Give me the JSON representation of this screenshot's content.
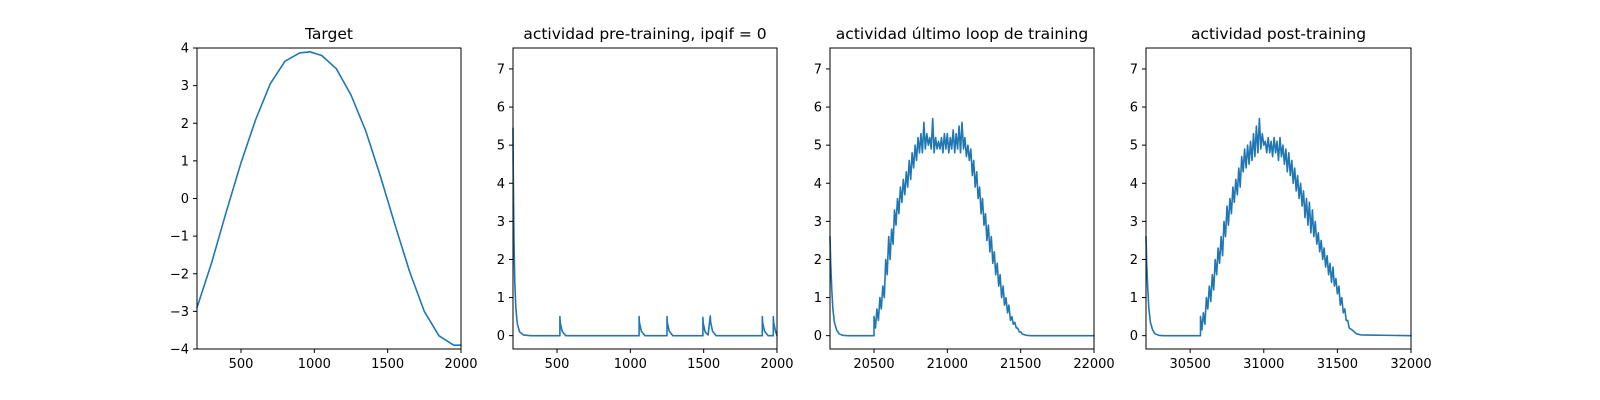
{
  "figure": {
    "line_color": "#1f77b4"
  },
  "chart_data": [
    {
      "type": "line",
      "title": "Target",
      "xlim": [
        200,
        2000
      ],
      "ylim": [
        -4,
        4
      ],
      "xticks": [
        500,
        1000,
        1500,
        2000
      ],
      "yticks": [
        -4,
        -3,
        -2,
        -1,
        0,
        1,
        2,
        3,
        4
      ],
      "series": [
        {
          "x": [
            200,
            300,
            400,
            500,
            600,
            700,
            800,
            900,
            970,
            1050,
            1150,
            1250,
            1350,
            1450,
            1550,
            1650,
            1750,
            1850,
            1950,
            2000
          ],
          "y": [
            -2.9,
            -1.7,
            -0.35,
            0.95,
            2.1,
            3.05,
            3.65,
            3.87,
            3.9,
            3.8,
            3.45,
            2.75,
            1.8,
            0.6,
            -0.7,
            -1.95,
            -3.0,
            -3.65,
            -3.9,
            -3.9
          ]
        }
      ]
    },
    {
      "type": "line",
      "title": "actividad pre-training, ipqif = 0",
      "xlim": [
        200,
        2000
      ],
      "ylim": [
        -0.35,
        7.55
      ],
      "xticks": [
        500,
        1000,
        1500,
        2000
      ],
      "yticks": [
        0,
        1,
        2,
        3,
        4,
        5,
        6,
        7
      ],
      "series": [
        {
          "x": [
            200,
            202,
            207,
            212,
            220,
            230,
            245,
            270,
            320,
            520,
            520,
            522,
            535,
            560,
            1060,
            1060,
            1062,
            1075,
            1100,
            1250,
            1250,
            1252,
            1265,
            1290,
            1495,
            1495,
            1497,
            1510,
            1530,
            1545,
            1547,
            1560,
            1585,
            1900,
            1900,
            1902,
            1915,
            1940,
            1975,
            1975,
            1977,
            1990,
            2000
          ],
          "y": [
            5.45,
            4.2,
            2.5,
            1.4,
            0.7,
            0.3,
            0.1,
            0.02,
            0.0,
            0.0,
            0.5,
            0.35,
            0.12,
            0.0,
            0.0,
            0.5,
            0.35,
            0.12,
            0.0,
            0.0,
            0.5,
            0.35,
            0.12,
            0.0,
            0.0,
            0.48,
            0.33,
            0.1,
            0.02,
            0.52,
            0.37,
            0.12,
            0.0,
            0.0,
            0.5,
            0.35,
            0.12,
            0.0,
            0.0,
            0.5,
            0.35,
            0.12,
            0.0
          ]
        }
      ]
    },
    {
      "type": "line",
      "title": "actividad último loop de training",
      "xlim": [
        20200,
        22000
      ],
      "ylim": [
        -0.35,
        7.55
      ],
      "xticks": [
        20500,
        21000,
        21500,
        22000
      ],
      "yticks": [
        0,
        1,
        2,
        3,
        4,
        5,
        6,
        7
      ],
      "series": [
        {
          "x": [
            20200,
            20205,
            20212,
            20220,
            20230,
            20245,
            20262,
            20285,
            20320,
            20500,
            20500,
            20510,
            20520,
            20530,
            20540,
            20550,
            20560,
            20570,
            20580,
            20590,
            20600,
            20610,
            20620,
            20630,
            20640,
            20650,
            20660,
            20670,
            20680,
            20690,
            20700,
            20710,
            20720,
            20730,
            20740,
            20750,
            20760,
            20770,
            20780,
            20790,
            20800,
            20810,
            20820,
            20830,
            20840,
            20850,
            20860,
            20870,
            20880,
            20890,
            20900,
            20910,
            20920,
            20930,
            20940,
            20950,
            20960,
            20970,
            20980,
            20990,
            21000,
            21010,
            21020,
            21030,
            21040,
            21050,
            21060,
            21070,
            21080,
            21090,
            21100,
            21110,
            21120,
            21130,
            21140,
            21150,
            21160,
            21170,
            21180,
            21190,
            21200,
            21210,
            21220,
            21230,
            21240,
            21250,
            21260,
            21270,
            21280,
            21290,
            21300,
            21310,
            21320,
            21330,
            21340,
            21350,
            21360,
            21370,
            21380,
            21390,
            21400,
            21410,
            21420,
            21430,
            21440,
            21450,
            21460,
            21470,
            21480,
            21490,
            21500,
            21510,
            21520,
            21540,
            21570,
            21600,
            22000
          ],
          "y": [
            2.6,
            1.9,
            1.2,
            0.7,
            0.35,
            0.15,
            0.05,
            0.01,
            0.0,
            0.0,
            0.5,
            0.2,
            0.7,
            0.4,
            1.0,
            0.7,
            1.3,
            1.0,
            2.0,
            1.6,
            2.6,
            2.0,
            2.8,
            2.4,
            3.3,
            2.9,
            3.6,
            3.2,
            3.9,
            3.5,
            4.1,
            3.7,
            4.3,
            3.9,
            4.6,
            4.1,
            4.8,
            4.4,
            5.0,
            4.6,
            5.2,
            4.8,
            5.3,
            4.8,
            5.6,
            4.9,
            5.3,
            5.0,
            5.2,
            4.9,
            5.7,
            4.8,
            5.2,
            4.9,
            5.1,
            4.9,
            5.2,
            4.8,
            5.3,
            4.9,
            5.3,
            4.8,
            5.2,
            4.9,
            5.4,
            4.8,
            5.3,
            4.9,
            5.5,
            4.8,
            5.6,
            4.9,
            5.2,
            4.7,
            5.0,
            4.6,
            4.9,
            4.2,
            4.6,
            3.9,
            4.3,
            3.6,
            3.9,
            3.2,
            3.6,
            2.9,
            3.2,
            2.5,
            2.9,
            2.2,
            2.6,
            1.9,
            2.2,
            1.6,
            1.9,
            1.3,
            1.6,
            1.0,
            1.3,
            0.8,
            1.0,
            0.6,
            0.8,
            0.4,
            0.5,
            0.3,
            0.35,
            0.2,
            0.2,
            0.1,
            0.1,
            0.05,
            0.03,
            0.01,
            0.0,
            0.0,
            0.0
          ]
        }
      ]
    },
    {
      "type": "line",
      "title": "actividad post-training",
      "xlim": [
        30200,
        32000
      ],
      "ylim": [
        -0.35,
        7.55
      ],
      "xticks": [
        30500,
        31000,
        31500,
        32000
      ],
      "yticks": [
        0,
        1,
        2,
        3,
        4,
        5,
        6,
        7
      ],
      "series": [
        {
          "x": [
            30200,
            30205,
            30212,
            30220,
            30230,
            30245,
            30262,
            30285,
            30320,
            30570,
            30570,
            30580,
            30590,
            30600,
            30610,
            30620,
            30630,
            30640,
            30650,
            30660,
            30670,
            30680,
            30690,
            30700,
            30710,
            30720,
            30730,
            30740,
            30750,
            30760,
            30770,
            30780,
            30790,
            30800,
            30810,
            30820,
            30830,
            30840,
            30850,
            30860,
            30870,
            30880,
            30890,
            30900,
            30910,
            30920,
            30930,
            30940,
            30950,
            30960,
            30970,
            30980,
            30990,
            31000,
            31010,
            31020,
            31030,
            31040,
            31050,
            31060,
            31070,
            31080,
            31090,
            31100,
            31110,
            31120,
            31130,
            31140,
            31150,
            31160,
            31170,
            31180,
            31190,
            31200,
            31210,
            31220,
            31230,
            31240,
            31250,
            31260,
            31270,
            31280,
            31290,
            31300,
            31310,
            31320,
            31330,
            31340,
            31350,
            31360,
            31370,
            31380,
            31390,
            31400,
            31410,
            31420,
            31430,
            31440,
            31450,
            31460,
            31470,
            31480,
            31490,
            31500,
            31510,
            31520,
            31530,
            31540,
            31550,
            31560,
            31570,
            31580,
            31600,
            31630,
            31660,
            32000
          ],
          "y": [
            2.6,
            1.9,
            1.2,
            0.7,
            0.35,
            0.15,
            0.05,
            0.01,
            0.0,
            0.0,
            0.5,
            0.15,
            0.6,
            0.3,
            1.0,
            0.7,
            1.3,
            0.9,
            1.6,
            1.2,
            2.0,
            1.6,
            2.3,
            1.9,
            2.6,
            2.1,
            3.0,
            2.6,
            3.4,
            2.9,
            3.6,
            3.2,
            3.9,
            3.5,
            4.1,
            3.7,
            4.4,
            3.9,
            4.7,
            4.3,
            4.9,
            4.4,
            5.0,
            4.5,
            5.1,
            4.6,
            5.3,
            4.7,
            5.5,
            4.8,
            5.7,
            4.9,
            5.3,
            5.0,
            5.1,
            4.8,
            5.2,
            4.8,
            5.1,
            4.7,
            5.2,
            4.8,
            5.1,
            4.6,
            5.2,
            4.7,
            5.0,
            4.5,
            4.9,
            4.3,
            4.8,
            4.2,
            4.6,
            4.0,
            4.4,
            3.8,
            4.2,
            3.6,
            4.0,
            3.4,
            3.8,
            3.1,
            3.6,
            2.9,
            3.5,
            2.7,
            3.3,
            2.6,
            3.0,
            2.4,
            2.7,
            2.2,
            2.5,
            2.0,
            2.3,
            1.8,
            2.1,
            1.6,
            1.9,
            1.4,
            1.8,
            1.3,
            1.5,
            1.1,
            1.3,
            0.8,
            1.0,
            0.6,
            0.7,
            0.4,
            0.4,
            0.2,
            0.15,
            0.05,
            0.02,
            0.0
          ]
        }
      ]
    }
  ]
}
